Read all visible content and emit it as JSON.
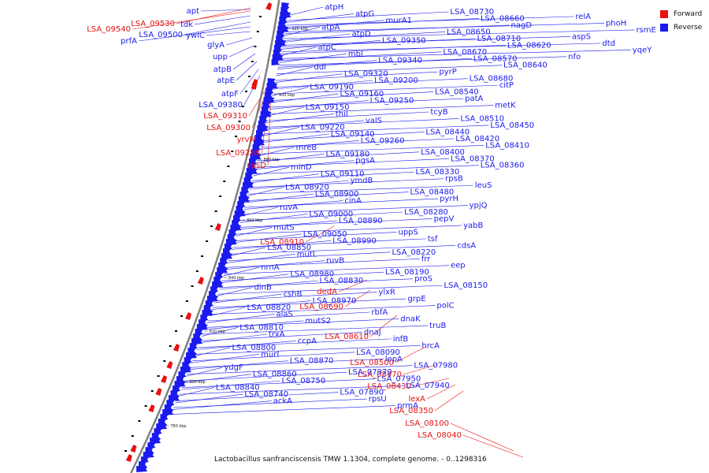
{
  "colors": {
    "forward": "#e81010",
    "reverse": "#1a1aee",
    "backbone": "#808080",
    "gc": "#000000"
  },
  "legend": {
    "forward_label": "Forward",
    "reverse_label": "Reverse"
  },
  "caption": "Lactobacillus sanfranciscensis TMW 1.1304, complete genome. - 0..1298316",
  "ticks": [
    "920 kbp",
    "900 kbp",
    "880 kbp",
    "860 kbp",
    "840 kbp",
    "820 kbp",
    "800 kbp",
    "780 kbp"
  ],
  "left_forward_labels": [
    "LSA_09530",
    "LSA_09540"
  ],
  "left_reverse_labels": [
    "apt",
    "tdk",
    "LSA_09500",
    "prfA",
    "ywlC",
    "glyA",
    "upp",
    "atpB",
    "atpE",
    "atpF",
    "LSA_09380"
  ],
  "left_red_labels": [
    "LSA_09310",
    "LSA_09300",
    "yrvN",
    "LSA_09280",
    "rpsD",
    "LSA_08910",
    "dedA",
    "LSA_08690",
    "LSA_08610",
    "LSA_08500",
    "LSA_08470",
    "LSA_08430",
    "lexA",
    "LSA_08350",
    "LSA_08100",
    "LSA_08040"
  ],
  "right_reverse_labels": [
    "atpH",
    "atpG",
    "murA1",
    "atpA",
    "atpD",
    "LSA_09350",
    "atpC",
    "mbl",
    "LSA_09340",
    "ddl",
    "LSA_09320",
    "LSA_09200",
    "LSA_09190",
    "LSA_09160",
    "LSA_09250",
    "LSA_09150",
    "thiI",
    "valS",
    "LSA_09220",
    "LSA_09140",
    "LSA_09260",
    "mreB",
    "LSA_09180",
    "pgsA",
    "minD",
    "LSA_09110",
    "ymdB",
    "LSA_08920",
    "LSA_08900",
    "cinA",
    "ruvA",
    "LSA_09000",
    "LSA_08890",
    "mutS",
    "LSA_09050",
    "LSA_08990",
    "LSA_08850",
    "mutL",
    "ruvB",
    "nrnA",
    "LSA_08980",
    "LSA_08830",
    "dinB",
    "cshB",
    "LSA_08970",
    "LSA_08820",
    "alaS",
    "mutS2",
    "LSA_08810",
    "trxA",
    "ccpA",
    "LSA_08800",
    "murI",
    "LSA_08870",
    "ydgF",
    "LSA_08860",
    "LSA_08750",
    "LSA_08840",
    "LSA_08740",
    "ackA",
    "LSA_08730",
    "LSA_08660",
    "nagD",
    "LSA_08650",
    "LSA_08710",
    "LSA_08620",
    "LSA_08670",
    "LSA_08570",
    "LSA_08640",
    "pyrP",
    "LSA_08680",
    "citP",
    "LSA_08540",
    "patA",
    "metK",
    "tcyB",
    "LSA_08510",
    "LSA_08450",
    "LSA_08440",
    "LSA_08420",
    "LSA_08410",
    "LSA_08400",
    "LSA_08370",
    "LSA_08360",
    "LSA_08330",
    "rpsB",
    "leuS",
    "LSA_08480",
    "pyrH",
    "ypjQ",
    "LSA_08280",
    "pepV",
    "yabB",
    "uppS",
    "tsf",
    "cdsA",
    "LSA_08220",
    "frr",
    "eep",
    "LSA_08190",
    "proS",
    "LSA_08150",
    "ylxR",
    "grpE",
    "polC",
    "rbfA",
    "dnaK",
    "truB",
    "dnaJ",
    "infB",
    "hrcA",
    "LSA_08090",
    "lepA",
    "LSA_07980",
    "LSA_07970",
    "LSA_07950",
    "LSA_07940",
    "LSA_07890",
    "rpsU",
    "prmA",
    "relA",
    "phoH",
    "rsmE",
    "aspS",
    "dtd",
    "yqeY",
    "nfo"
  ]
}
